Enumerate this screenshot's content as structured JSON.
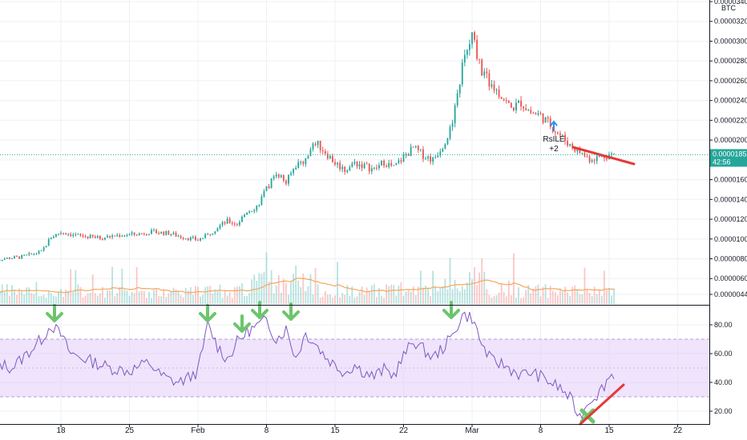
{
  "chart_data": {
    "type": "candlestick",
    "currency_label": "BTC",
    "price_axis": {
      "ticks": [
        "0.00003400",
        "0.00003200",
        "0.00003000",
        "0.00002800",
        "0.00002600",
        "0.00002400",
        "0.00002200",
        "0.00002000",
        "0.00001800",
        "0.00001600",
        "0.00001400",
        "0.00001200",
        "0.00001000",
        "0.00000800",
        "0.00000600",
        "0.00000440"
      ],
      "range": [
        3.6e-06,
        3.4e-06
      ]
    },
    "current_price": "0.00001852",
    "countdown": "42:56",
    "x_axis": {
      "labels": [
        "18",
        "25",
        "Feb",
        "8",
        "15",
        "22",
        "Mar",
        "8",
        "15",
        "22"
      ]
    },
    "price_series": {
      "description": "daily close, approx",
      "dates_from": "Jan 11",
      "points": [
        [
          "Jan 11",
          7.9e-06
        ],
        [
          "Jan 14",
          8.2e-06
        ],
        [
          "Jan 16",
          8.7e-06
        ],
        [
          "Jan 17",
          1.02e-05
        ],
        [
          "Jan 18",
          1.07e-05
        ],
        [
          "Jan 20",
          1.03e-05
        ],
        [
          "Jan 22",
          1.01e-05
        ],
        [
          "Jan 24",
          1.04e-05
        ],
        [
          "Jan 26",
          1.05e-05
        ],
        [
          "Jan 27",
          1.07e-05
        ],
        [
          "Jan 29",
          1.06e-05
        ],
        [
          "Jan 30",
          1.03e-05
        ],
        [
          "Feb 1",
          9.9e-06
        ],
        [
          "Feb 2",
          1.04e-05
        ],
        [
          "Feb 3",
          1.12e-05
        ],
        [
          "Feb 4",
          1.18e-05
        ],
        [
          "Feb 5",
          1.15e-05
        ],
        [
          "Feb 6",
          1.28e-05
        ],
        [
          "Feb 7",
          1.33e-05
        ],
        [
          "Feb 8",
          1.5e-05
        ],
        [
          "Feb 9",
          1.68e-05
        ],
        [
          "Feb 10",
          1.57e-05
        ],
        [
          "Feb 11",
          1.75e-05
        ],
        [
          "Feb 12",
          1.8e-05
        ],
        [
          "Feb 13",
          1.98e-05
        ],
        [
          "Feb 14",
          1.88e-05
        ],
        [
          "Feb 15",
          1.77e-05
        ],
        [
          "Feb 16",
          1.7e-05
        ],
        [
          "Feb 17",
          1.77e-05
        ],
        [
          "Feb 18",
          1.74e-05
        ],
        [
          "Feb 19",
          1.7e-05
        ],
        [
          "Feb 20",
          1.78e-05
        ],
        [
          "Feb 21",
          1.72e-05
        ],
        [
          "Feb 22",
          1.83e-05
        ],
        [
          "Feb 23",
          1.92e-05
        ],
        [
          "Feb 24",
          1.85e-05
        ],
        [
          "Feb 25",
          1.8e-05
        ],
        [
          "Feb 26",
          1.95e-05
        ],
        [
          "Feb 27",
          2.15e-05
        ],
        [
          "Feb 28",
          2.75e-05
        ],
        [
          "Mar 1",
          3.05e-05
        ],
        [
          "Mar 2",
          2.7e-05
        ],
        [
          "Mar 3",
          2.55e-05
        ],
        [
          "Mar 4",
          2.45e-05
        ],
        [
          "Mar 5",
          2.32e-05
        ],
        [
          "Mar 6",
          2.38e-05
        ],
        [
          "Mar 7",
          2.28e-05
        ],
        [
          "Mar 8",
          2.25e-05
        ],
        [
          "Mar 9",
          2.15e-05
        ],
        [
          "Mar 10",
          2.05e-05
        ],
        [
          "Mar 11",
          1.95e-05
        ],
        [
          "Mar 12",
          1.88e-05
        ],
        [
          "Mar 13",
          1.81e-05
        ],
        [
          "Mar 14",
          1.83e-05
        ],
        [
          "Mar 15",
          1.85e-05
        ]
      ]
    },
    "volume_ma": "orange moving average over volume bars",
    "rsi": {
      "axis_ticks": [
        "80.00",
        "60.00",
        "40.00",
        "20.00"
      ],
      "band": [
        30,
        70
      ],
      "range": [
        12,
        92
      ],
      "points": [
        [
          "Jan 11",
          55
        ],
        [
          "Jan 13",
          50
        ],
        [
          "Jan 15",
          63
        ],
        [
          "Jan 16",
          70
        ],
        [
          "Jan 17",
          80
        ],
        [
          "Jan 18",
          73
        ],
        [
          "Jan 19",
          60
        ],
        [
          "Jan 21",
          55
        ],
        [
          "Jan 23",
          50
        ],
        [
          "Jan 25",
          48
        ],
        [
          "Jan 27",
          54
        ],
        [
          "Jan 28",
          46
        ],
        [
          "Jan 29",
          42
        ],
        [
          "Jan 30",
          40
        ],
        [
          "Jan 31",
          43
        ],
        [
          "Feb 1",
          48
        ],
        [
          "Feb 2",
          80
        ],
        [
          "Feb 3",
          65
        ],
        [
          "Feb 4",
          56
        ],
        [
          "Feb 5",
          68
        ],
        [
          "Feb 6",
          75
        ],
        [
          "Feb 7",
          79
        ],
        [
          "Feb 8",
          83
        ],
        [
          "Feb 9",
          70
        ],
        [
          "Feb 10",
          77
        ],
        [
          "Feb 11",
          57
        ],
        [
          "Feb 12",
          74
        ],
        [
          "Feb 13",
          67
        ],
        [
          "Feb 14",
          58
        ],
        [
          "Feb 15",
          52
        ],
        [
          "Feb 16",
          47
        ],
        [
          "Feb 17",
          52
        ],
        [
          "Feb 18",
          47
        ],
        [
          "Feb 19",
          44
        ],
        [
          "Feb 20",
          49
        ],
        [
          "Feb 21",
          45
        ],
        [
          "Feb 22",
          58
        ],
        [
          "Feb 23",
          69
        ],
        [
          "Feb 24",
          63
        ],
        [
          "Feb 25",
          57
        ],
        [
          "Feb 26",
          64
        ],
        [
          "Feb 27",
          72
        ],
        [
          "Feb 28",
          87
        ],
        [
          "Mar 1",
          85
        ],
        [
          "Mar 2",
          66
        ],
        [
          "Mar 3",
          55
        ],
        [
          "Mar 4",
          53
        ],
        [
          "Mar 5",
          49
        ],
        [
          "Mar 6",
          45
        ],
        [
          "Mar 7",
          47
        ],
        [
          "Mar 8",
          44
        ],
        [
          "Mar 9",
          40
        ],
        [
          "Mar 10",
          36
        ],
        [
          "Mar 11",
          29
        ],
        [
          "Mar 12",
          16
        ],
        [
          "Mar 13",
          28
        ],
        [
          "Mar 14",
          33
        ],
        [
          "Mar 15",
          44
        ],
        [
          "Mar 15.5",
          46
        ]
      ]
    },
    "annotations": {
      "indicator_label": "RsILE",
      "indicator_value": "+2",
      "green_arrows_count": 7,
      "trend_lines": [
        "price: falling red line",
        "rsi: rising red line"
      ]
    }
  },
  "colors": {
    "up": "#26a69a",
    "down": "#ef5350",
    "rsi_line": "#7e57c2",
    "rsi_band": "#e1cdf7",
    "volume_ma": "#f5a75b",
    "arrow": "#6cc56c",
    "trend": "#e53935",
    "price_badge": "#26a69a",
    "blue_arrow": "#2196f3"
  },
  "icons": {
    "down_arrow": "green-down-arrow-icon",
    "up_arrow": "blue-up-arrow-icon",
    "cross": "green-cross-icon"
  }
}
